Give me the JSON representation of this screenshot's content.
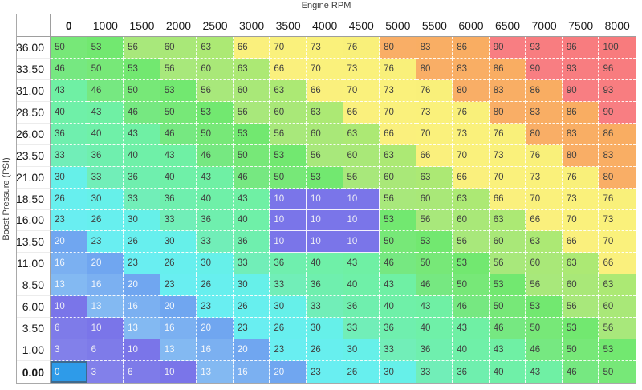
{
  "labels": {
    "x_axis": "Engine RPM",
    "y_axis": "Boost Pressure (PSI)"
  },
  "table": {
    "col_headers": [
      "0",
      "1000",
      "1500",
      "2000",
      "2500",
      "3000",
      "3500",
      "4000",
      "4500",
      "5000",
      "5500",
      "6000",
      "6500",
      "7000",
      "7500",
      "8000"
    ],
    "rows": [
      {
        "label": "36.00",
        "values": [
          50,
          53,
          56,
          60,
          63,
          66,
          70,
          73,
          76,
          80,
          83,
          86,
          90,
          93,
          96,
          100
        ]
      },
      {
        "label": "33.50",
        "values": [
          46,
          50,
          53,
          56,
          60,
          63,
          66,
          70,
          73,
          76,
          80,
          83,
          86,
          90,
          93,
          96
        ]
      },
      {
        "label": "31.00",
        "values": [
          43,
          46,
          50,
          53,
          56,
          60,
          63,
          66,
          70,
          73,
          76,
          80,
          83,
          86,
          90,
          93
        ]
      },
      {
        "label": "28.50",
        "values": [
          40,
          43,
          46,
          50,
          53,
          56,
          60,
          63,
          66,
          70,
          73,
          76,
          80,
          83,
          86,
          90
        ]
      },
      {
        "label": "26.00",
        "values": [
          36,
          40,
          43,
          46,
          50,
          53,
          56,
          60,
          63,
          66,
          70,
          73,
          76,
          80,
          83,
          86
        ]
      },
      {
        "label": "23.50",
        "values": [
          33,
          36,
          40,
          43,
          46,
          50,
          53,
          56,
          60,
          63,
          66,
          70,
          73,
          76,
          80,
          83
        ]
      },
      {
        "label": "21.00",
        "values": [
          30,
          33,
          36,
          40,
          43,
          46,
          50,
          53,
          56,
          60,
          63,
          66,
          70,
          73,
          76,
          80
        ]
      },
      {
        "label": "18.50",
        "values": [
          26,
          30,
          33,
          36,
          40,
          43,
          10,
          10,
          10,
          56,
          60,
          63,
          66,
          70,
          73,
          76
        ]
      },
      {
        "label": "16.00",
        "values": [
          23,
          26,
          30,
          33,
          36,
          40,
          10,
          10,
          10,
          53,
          56,
          60,
          63,
          66,
          70,
          73
        ]
      },
      {
        "label": "13.50",
        "values": [
          20,
          23,
          26,
          30,
          33,
          36,
          10,
          10,
          10,
          50,
          53,
          56,
          60,
          63,
          66,
          70
        ]
      },
      {
        "label": "11.00",
        "values": [
          16,
          20,
          23,
          26,
          30,
          33,
          36,
          40,
          43,
          46,
          50,
          53,
          56,
          60,
          63,
          66
        ]
      },
      {
        "label": "8.50",
        "values": [
          13,
          16,
          20,
          23,
          26,
          30,
          33,
          36,
          40,
          43,
          46,
          50,
          53,
          56,
          60,
          63
        ]
      },
      {
        "label": "6.00",
        "values": [
          10,
          13,
          16,
          20,
          23,
          26,
          30,
          33,
          36,
          40,
          43,
          46,
          50,
          53,
          56,
          60
        ]
      },
      {
        "label": "3.50",
        "values": [
          6,
          10,
          13,
          16,
          20,
          23,
          26,
          30,
          33,
          36,
          40,
          43,
          46,
          50,
          53,
          56
        ]
      },
      {
        "label": "1.00",
        "values": [
          3,
          6,
          10,
          13,
          16,
          20,
          23,
          26,
          30,
          33,
          36,
          40,
          43,
          46,
          50,
          53
        ]
      },
      {
        "label": "0.00",
        "values": [
          0,
          3,
          6,
          10,
          13,
          16,
          20,
          23,
          26,
          30,
          33,
          36,
          40,
          43,
          46,
          50
        ]
      }
    ],
    "active_cell": {
      "row_index": 15,
      "col_index": 0
    },
    "selected_block": {
      "row_start": 7,
      "row_end": 9,
      "col_start": 6,
      "col_end": 8
    },
    "color_map": {
      "0": {
        "bg": "#2E9BE9",
        "fg": "#F5F5F5"
      },
      "3": {
        "bg": "#8280EA",
        "fg": "#F0F0F5"
      },
      "6": {
        "bg": "#7E7BE9",
        "fg": "#F0F0F5"
      },
      "10": {
        "bg": "#7A75E9",
        "fg": "#EDEDF6"
      },
      "13": {
        "bg": "#83B9F2",
        "fg": "#F2F6FB"
      },
      "16": {
        "bg": "#7BB0F1",
        "fg": "#F2F6FB"
      },
      "20": {
        "bg": "#70A6F0",
        "fg": "#F2F6FB"
      },
      "23": {
        "bg": "#69EEF1",
        "fg": "#3F3F3F"
      },
      "26": {
        "bg": "#67EFEE",
        "fg": "#3F3F3F"
      },
      "30": {
        "bg": "#66F0E9",
        "fg": "#3F3F3F"
      },
      "33": {
        "bg": "#71EEB8",
        "fg": "#3F3F3F"
      },
      "36": {
        "bg": "#6FEFAE",
        "fg": "#3F3F3F"
      },
      "40": {
        "bg": "#6FF0A8",
        "fg": "#3F3F3F"
      },
      "43": {
        "bg": "#6FF0A4",
        "fg": "#3F3F3F"
      },
      "46": {
        "bg": "#76E881",
        "fg": "#3F3F3F"
      },
      "50": {
        "bg": "#77E878",
        "fg": "#3F3F3F"
      },
      "53": {
        "bg": "#72E870",
        "fg": "#3F3F3F"
      },
      "56": {
        "bg": "#A8E87B",
        "fg": "#3F3F3F"
      },
      "60": {
        "bg": "#A9E878",
        "fg": "#3F3F3F"
      },
      "63": {
        "bg": "#ACE974",
        "fg": "#3F3F3F"
      },
      "66": {
        "bg": "#FAF07D",
        "fg": "#3F3F3F"
      },
      "70": {
        "bg": "#FAF17C",
        "fg": "#3F3F3F"
      },
      "73": {
        "bg": "#FAF17B",
        "fg": "#3F3F3F"
      },
      "76": {
        "bg": "#F9F07A",
        "fg": "#3F3F3F"
      },
      "80": {
        "bg": "#F9AE66",
        "fg": "#3F3F3F"
      },
      "83": {
        "bg": "#F9AE64",
        "fg": "#3F3F3F"
      },
      "86": {
        "bg": "#F9AD62",
        "fg": "#3F3F3F"
      },
      "90": {
        "bg": "#F87E82",
        "fg": "#3F3F3F"
      },
      "93": {
        "bg": "#F87D80",
        "fg": "#3F3F3F"
      },
      "96": {
        "bg": "#F87C7F",
        "fg": "#3F3F3F"
      },
      "100": {
        "bg": "#F87B7D",
        "fg": "#3F3F3F"
      }
    }
  }
}
